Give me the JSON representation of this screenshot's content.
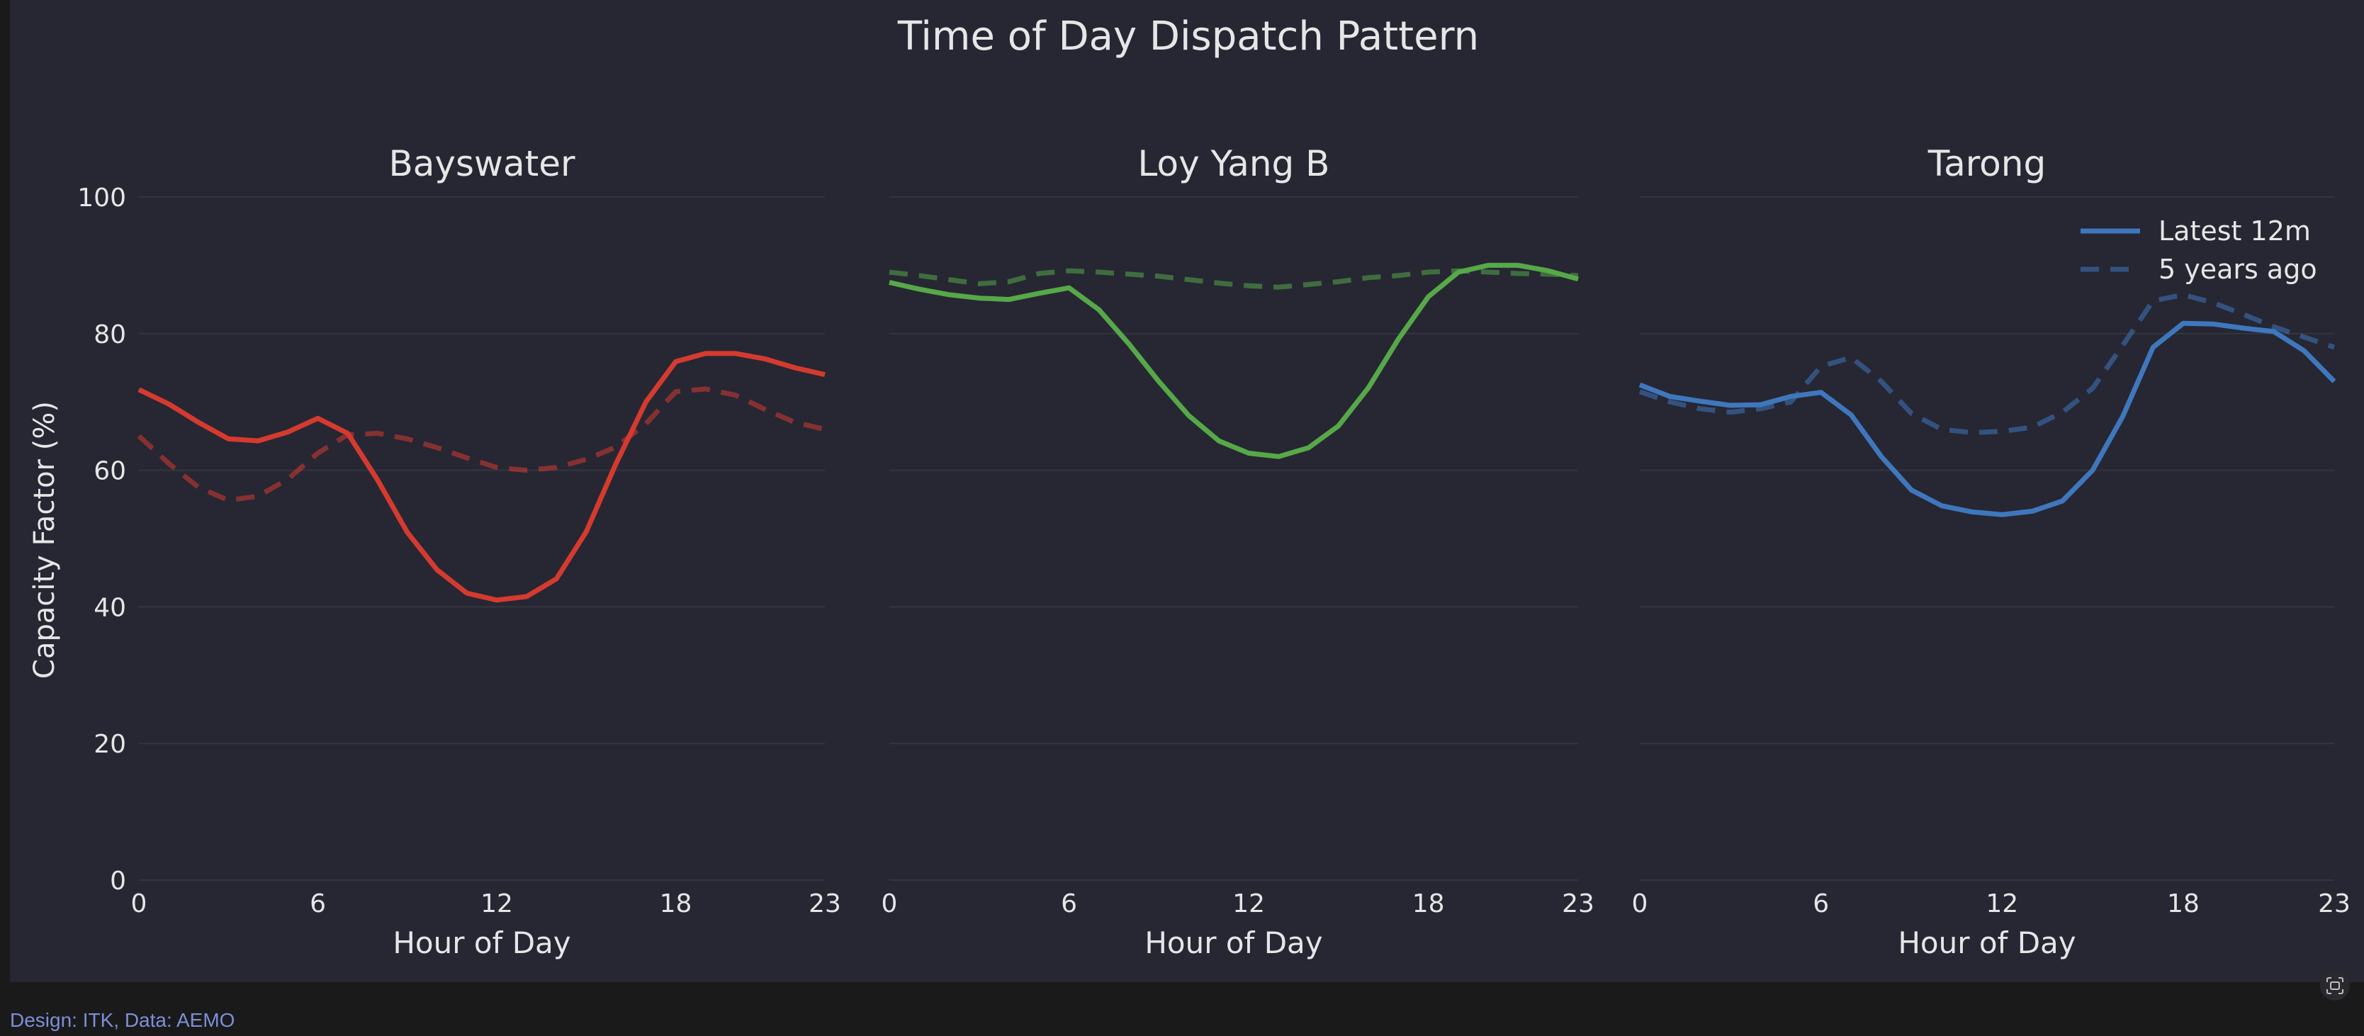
{
  "colors": {
    "background": "#262733",
    "text": "#e6e6e6",
    "grid": "#33353f",
    "series": [
      "#d63a2f",
      "#56a848",
      "#3f77bd"
    ]
  },
  "footer": {
    "credit": "Design: ITK, Data: AEMO"
  },
  "icons": {
    "capture": "screenshot-icon"
  },
  "chart_data": {
    "type": "line",
    "title": "Time of Day Dispatch Pattern",
    "ylabel": "Capacity Factor (%)",
    "ylim": [
      0,
      100
    ],
    "yticks": [
      0,
      20,
      40,
      60,
      80,
      100
    ],
    "xlim": [
      0,
      23
    ],
    "xticks": [
      0,
      6,
      12,
      18,
      23
    ],
    "grid": true,
    "legend": {
      "placement": "top-right",
      "entries": [
        "Latest 12m",
        "5 years ago"
      ]
    },
    "panels": [
      {
        "title": "Bayswater",
        "xlabel": "Hour of Day",
        "x": [
          0,
          1,
          2,
          3,
          4,
          5,
          6,
          7,
          8,
          9,
          10,
          11,
          12,
          13,
          14,
          15,
          16,
          17,
          18,
          19,
          20,
          21,
          22,
          23
        ],
        "series": [
          {
            "name": "Latest 12m",
            "style": "solid",
            "values": [
              71.8,
              69.7,
              67,
              64.6,
              64.3,
              65.6,
              67.6,
              65.4,
              58.6,
              50.9,
              45.4,
              42,
              41,
              41.5,
              44.1,
              51,
              61,
              70,
              75.9,
              77.1,
              77.1,
              76.3,
              75,
              74
            ]
          },
          {
            "name": "5 years ago",
            "style": "dashed",
            "values": [
              65,
              61,
              57.5,
              55.6,
              56.2,
              58.7,
              62.5,
              65.2,
              65.4,
              64.6,
              63.3,
              61.8,
              60.4,
              60,
              60.4,
              61.6,
              63.4,
              66.8,
              71.5,
              71.9,
              71,
              68.9,
              67,
              66
            ]
          }
        ]
      },
      {
        "title": "Loy Yang B",
        "xlabel": "Hour of Day",
        "x": [
          0,
          1,
          2,
          3,
          4,
          5,
          6,
          7,
          8,
          9,
          10,
          11,
          12,
          13,
          14,
          15,
          16,
          17,
          18,
          19,
          20,
          21,
          22,
          23
        ],
        "series": [
          {
            "name": "Latest 12m",
            "style": "solid",
            "values": [
              87.5,
              86.5,
              85.7,
              85.2,
              85,
              85.9,
              86.7,
              83.5,
              78.5,
              73,
              68,
              64.3,
              62.5,
              62,
              63.3,
              66.5,
              72.1,
              79.2,
              85.4,
              89,
              90,
              90,
              89.2,
              88
            ]
          },
          {
            "name": "5 years ago",
            "style": "dashed",
            "values": [
              89,
              88.5,
              87.9,
              87.3,
              87.6,
              88.8,
              89.2,
              89,
              88.7,
              88.4,
              87.9,
              87.4,
              87,
              86.8,
              87.2,
              87.6,
              88.2,
              88.5,
              89,
              89.2,
              89,
              88.8,
              88.7,
              88.5
            ]
          }
        ]
      },
      {
        "title": "Tarong",
        "xlabel": "Hour of Day",
        "x": [
          0,
          1,
          2,
          3,
          4,
          5,
          6,
          7,
          8,
          9,
          10,
          11,
          12,
          13,
          14,
          15,
          16,
          17,
          18,
          19,
          20,
          21,
          22,
          23
        ],
        "series": [
          {
            "name": "Latest 12m",
            "style": "solid",
            "values": [
              72.5,
              70.8,
              70.1,
              69.5,
              69.6,
              70.8,
              71.4,
              68.1,
              62,
              57.1,
              54.8,
              53.9,
              53.5,
              54,
              55.5,
              60,
              67.9,
              78,
              81.5,
              81.4,
              80.8,
              80.3,
              77.5,
              73
            ]
          },
          {
            "name": "5 years ago",
            "style": "dashed",
            "values": [
              71.5,
              70,
              69,
              68.5,
              69,
              70,
              75.2,
              76.5,
              73,
              68.3,
              66,
              65.5,
              65.7,
              66.3,
              68.5,
              72,
              78.3,
              84.8,
              85.7,
              84.5,
              82.8,
              81,
              79.5,
              78
            ]
          }
        ]
      }
    ]
  }
}
